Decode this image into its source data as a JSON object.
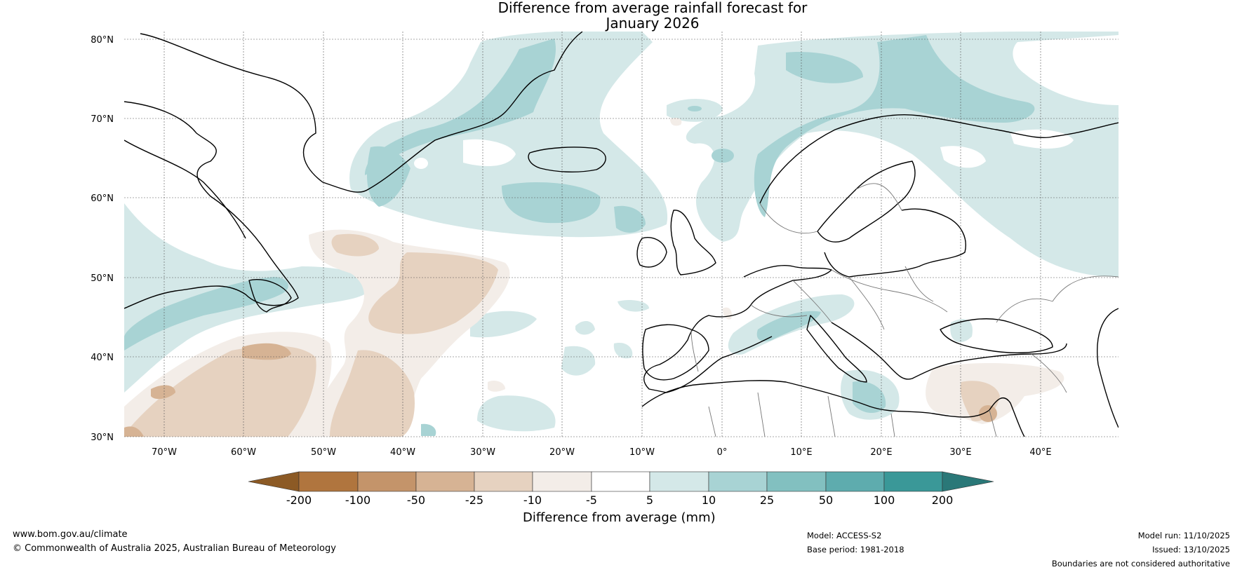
{
  "title": {
    "line1": "Difference from average rainfall forecast for",
    "line2": "January 2026"
  },
  "map": {
    "lat_labels": [
      "80°N",
      "70°N",
      "60°N",
      "50°N",
      "40°N",
      "30°N"
    ],
    "lon_labels": [
      "70°W",
      "60°W",
      "50°W",
      "40°W",
      "30°W",
      "20°W",
      "10°W",
      "0°",
      "10°E",
      "20°E",
      "30°E",
      "40°E"
    ]
  },
  "colorbar": {
    "ticks": [
      "-200",
      "-100",
      "-50",
      "-25",
      "-10",
      "-5",
      "5",
      "10",
      "25",
      "50",
      "100",
      "200"
    ],
    "colors": {
      "below_min": "#8c5a25",
      "bins": [
        "#b0753e",
        "#c4946a",
        "#d6b394",
        "#e6d2c0",
        "#f3ede8",
        "#ffffff",
        "#d4e8e8",
        "#a8d3d4",
        "#82c0c0",
        "#5eacae",
        "#3a9898"
      ],
      "above_max": "#2a7878"
    },
    "label": "Difference from average (mm)"
  },
  "footer": {
    "website": "www.bom.gov.au/climate",
    "copyright": "© Commonwealth of Australia 2025, Australian Bureau of Meteorology",
    "model": "Model: ACCESS-S2",
    "base_period": "Base period: 1981-2018",
    "model_run": "Model run: 11/10/2025",
    "issued": "Issued: 13/10/2025",
    "disclaimer": "Boundaries are not considered authoritative"
  }
}
